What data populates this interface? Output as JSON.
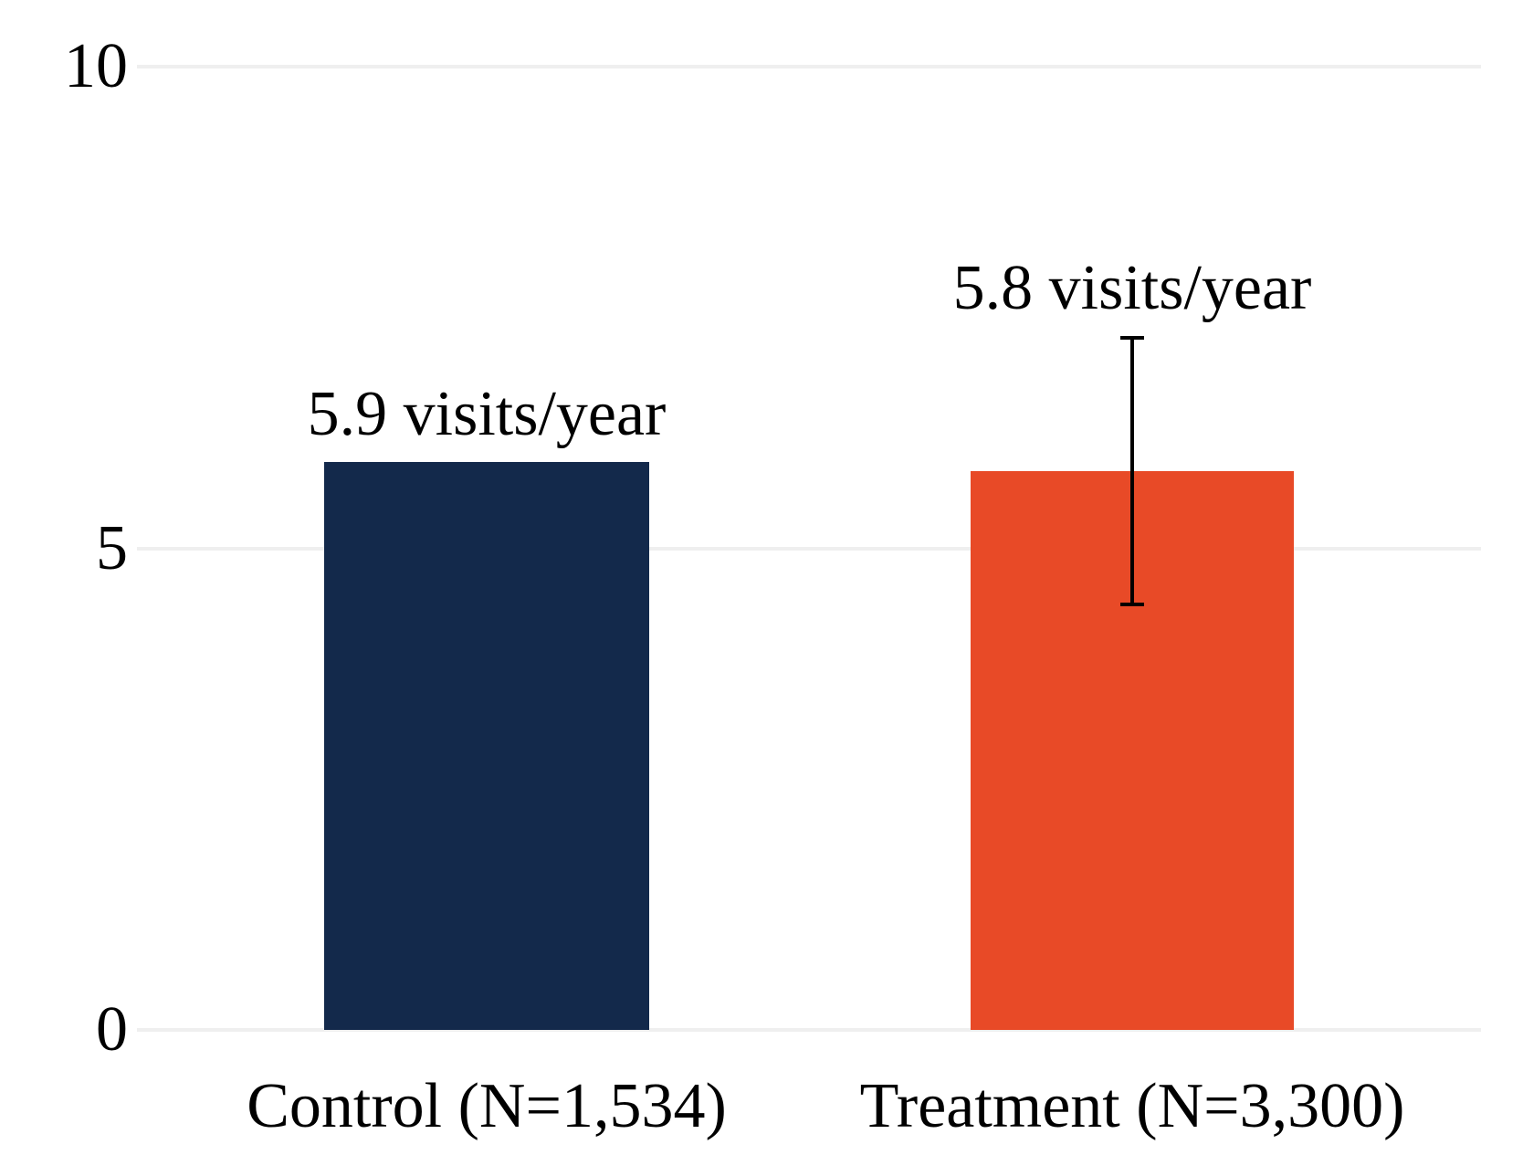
{
  "chart_data": {
    "type": "bar",
    "title": "",
    "xlabel": "",
    "ylabel": "",
    "categories": [
      "Control (N=1,534)",
      "Treatment (N=3,300)"
    ],
    "values": [
      5.9,
      5.8
    ],
    "bar_value_labels": [
      "5.9 visits/year",
      "5.8 visits/year"
    ],
    "bar_colors": [
      "#13294b",
      "#e84a27"
    ],
    "error_bar": {
      "bar_index": 1,
      "low": 4.4,
      "high": 7.2,
      "color": "#000000"
    },
    "ylim": [
      0,
      10
    ],
    "yticks": [
      {
        "value": 0,
        "label": "0"
      },
      {
        "value": 5,
        "label": "5"
      },
      {
        "value": 10,
        "label": "10"
      }
    ],
    "grid": true,
    "gridline_color": "#efefef",
    "legend": "none",
    "background": "#ffffff"
  }
}
